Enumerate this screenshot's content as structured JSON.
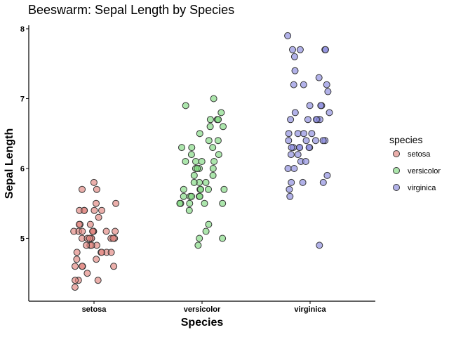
{
  "chart_data": {
    "type": "scatter",
    "title": "Beeswarm: Sepal Length by Species",
    "xlabel": "Species",
    "ylabel": "Sepal Length",
    "categories": [
      "setosa",
      "versicolor",
      "virginica"
    ],
    "ylim": [
      4.1,
      8.05
    ],
    "yticks": [
      5,
      6,
      7,
      8
    ],
    "grid": false,
    "legend": {
      "title": "species",
      "placement": "right"
    },
    "series": [
      {
        "name": "setosa",
        "color": "#e0847e",
        "values": [
          5.1,
          4.9,
          4.7,
          4.6,
          5.0,
          5.4,
          4.6,
          5.0,
          4.4,
          4.9,
          5.4,
          4.8,
          4.8,
          4.3,
          5.8,
          5.7,
          5.4,
          5.1,
          5.7,
          5.1,
          5.4,
          5.1,
          4.6,
          5.1,
          4.8,
          5.0,
          5.0,
          5.2,
          5.2,
          4.7,
          4.8,
          5.4,
          5.2,
          5.5,
          4.9,
          5.0,
          5.5,
          4.9,
          4.4,
          5.1,
          5.0,
          4.5,
          4.4,
          5.0,
          5.1,
          4.8,
          5.1,
          4.6,
          5.3,
          5.0
        ]
      },
      {
        "name": "versicolor",
        "color": "#7fd97f",
        "values": [
          7.0,
          6.4,
          6.9,
          5.5,
          6.5,
          5.7,
          6.3,
          4.9,
          6.6,
          5.2,
          5.0,
          5.9,
          6.0,
          6.1,
          5.6,
          6.7,
          5.6,
          5.8,
          6.2,
          5.6,
          5.9,
          6.1,
          6.3,
          6.1,
          6.4,
          6.6,
          6.8,
          6.7,
          6.0,
          5.7,
          5.5,
          5.5,
          5.8,
          6.0,
          5.4,
          6.0,
          6.7,
          6.3,
          5.6,
          5.5,
          5.5,
          6.1,
          5.8,
          5.0,
          5.6,
          5.7,
          5.7,
          6.2,
          5.1,
          5.7
        ]
      },
      {
        "name": "virginica",
        "color": "#8888dd",
        "values": [
          6.3,
          5.8,
          7.1,
          6.3,
          6.5,
          7.6,
          4.9,
          7.3,
          6.7,
          7.2,
          6.5,
          6.4,
          6.8,
          5.7,
          5.8,
          6.4,
          6.5,
          7.7,
          7.7,
          6.0,
          6.9,
          5.6,
          7.7,
          6.3,
          6.7,
          7.2,
          6.2,
          6.1,
          6.4,
          7.2,
          7.4,
          7.9,
          6.4,
          6.3,
          6.1,
          7.7,
          6.3,
          6.4,
          6.0,
          6.9,
          6.7,
          6.9,
          5.8,
          6.8,
          6.7,
          6.7,
          6.3,
          6.5,
          6.2,
          5.9
        ]
      }
    ]
  }
}
